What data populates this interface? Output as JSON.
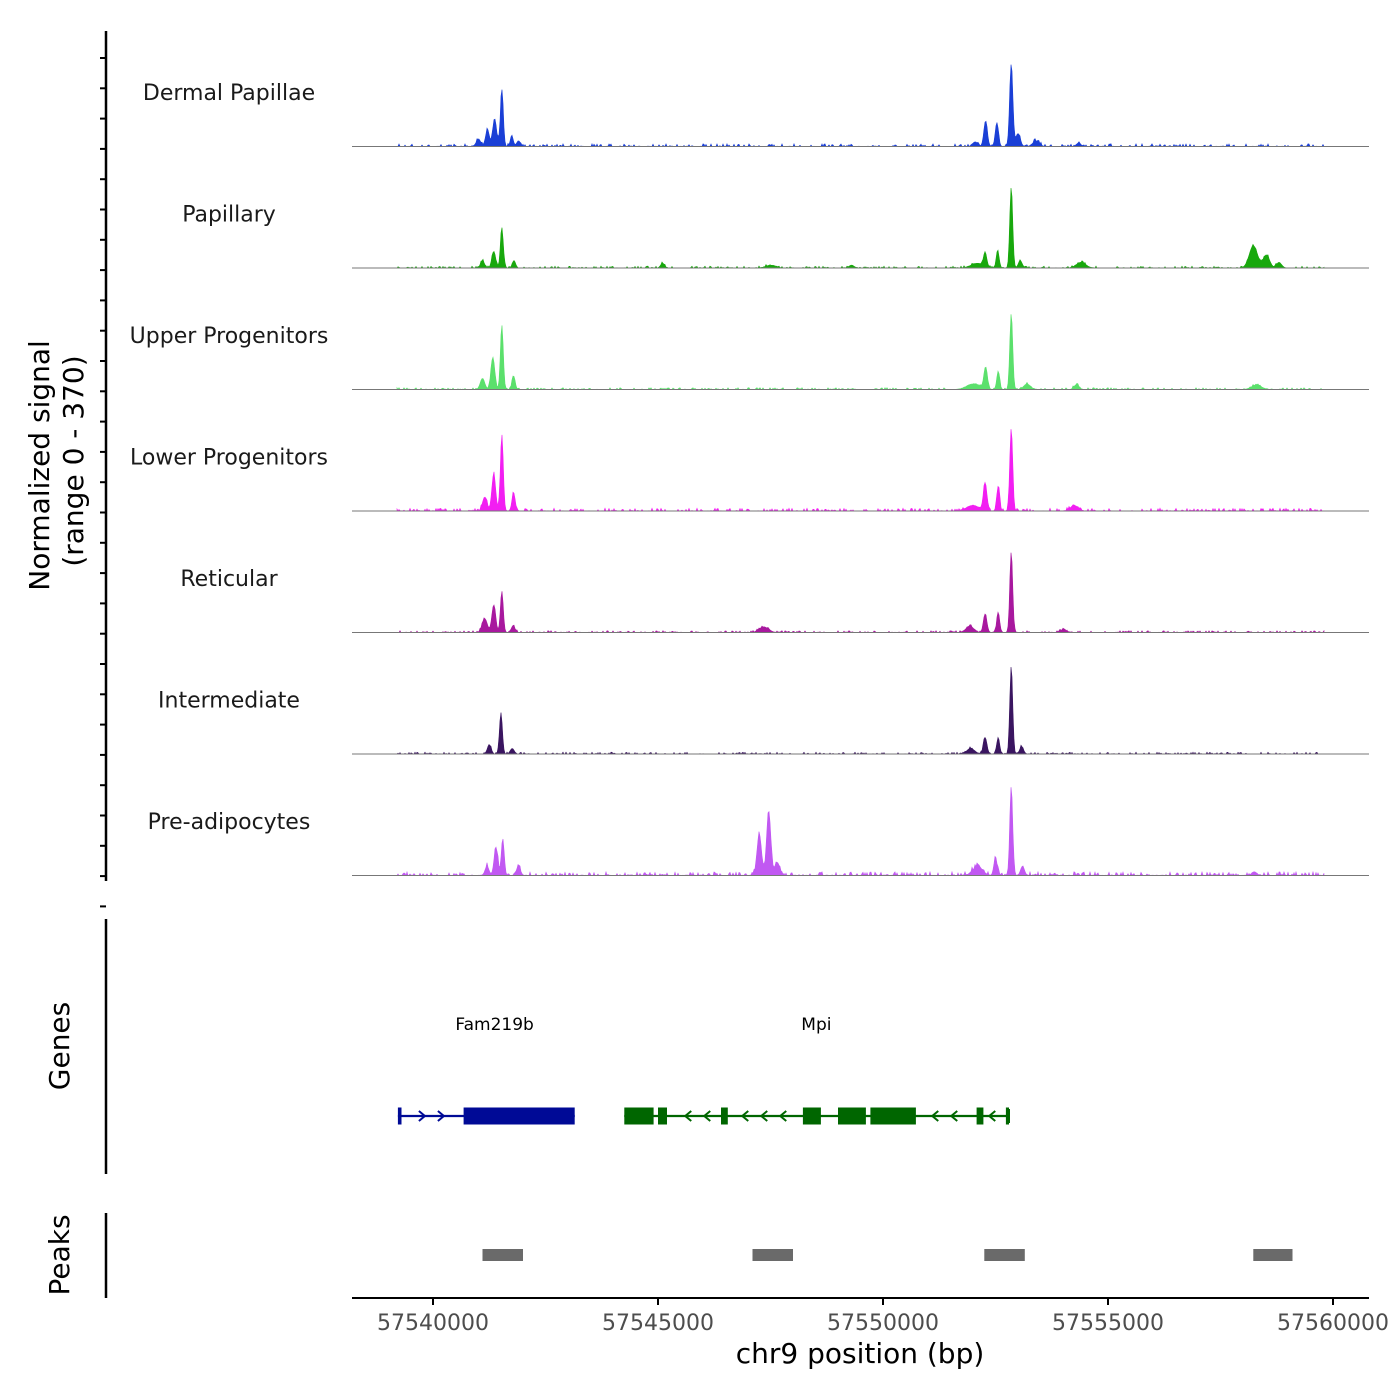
{
  "chart_data": {
    "type": "area",
    "title": "",
    "chromosome": "chr9",
    "xlabel": "chr9 position (bp)",
    "xlim": [
      57538200,
      57560800
    ],
    "xticks": [
      57540000,
      57545000,
      57550000,
      57555000,
      57560000
    ],
    "xtick_labels": [
      "57540000",
      "57545000",
      "57550000",
      "57555000",
      "57560000"
    ],
    "coverage": {
      "ylabel": "Normalized signal\n(range 0 - 370)",
      "ylabel_lines": [
        "Normalized signal",
        "(range 0 - 370)"
      ],
      "ylim": [
        0,
        370
      ],
      "data_start": 57539200,
      "data_end": 57559800,
      "series": [
        {
          "name": "Dermal Papillae",
          "color": "#1a3fd6",
          "background": 0.03,
          "peaks": [
            [
              57541010,
              0.08,
              70
            ],
            [
              57541210,
              0.18,
              60
            ],
            [
              57541370,
              0.3,
              60
            ],
            [
              57541530,
              0.62,
              45
            ],
            [
              57541750,
              0.12,
              45
            ],
            [
              57541900,
              0.06,
              60
            ],
            [
              57552050,
              0.05,
              80
            ],
            [
              57552280,
              0.28,
              55
            ],
            [
              57552530,
              0.26,
              50
            ],
            [
              57552850,
              0.9,
              50
            ],
            [
              57553000,
              0.14,
              70
            ],
            [
              57553400,
              0.06,
              100
            ],
            [
              57554350,
              0.04,
              60
            ]
          ]
        },
        {
          "name": "Papillary",
          "color": "#18a80d",
          "background": 0.02,
          "peaks": [
            [
              57541100,
              0.08,
              60
            ],
            [
              57541350,
              0.18,
              60
            ],
            [
              57541530,
              0.44,
              45
            ],
            [
              57541800,
              0.08,
              50
            ],
            [
              57545100,
              0.05,
              60
            ],
            [
              57547500,
              0.03,
              150
            ],
            [
              57549300,
              0.03,
              80
            ],
            [
              57552100,
              0.05,
              200
            ],
            [
              57552270,
              0.15,
              50
            ],
            [
              57552550,
              0.18,
              45
            ],
            [
              57552850,
              0.88,
              45
            ],
            [
              57553050,
              0.08,
              60
            ],
            [
              57554400,
              0.06,
              150
            ],
            [
              57558230,
              0.24,
              130
            ],
            [
              57558520,
              0.14,
              100
            ],
            [
              57558800,
              0.06,
              80
            ]
          ]
        },
        {
          "name": "Upper Progenitors",
          "color": "#5be06c",
          "background": 0.02,
          "peaks": [
            [
              57541100,
              0.12,
              70
            ],
            [
              57541330,
              0.35,
              60
            ],
            [
              57541530,
              0.7,
              45
            ],
            [
              57541790,
              0.14,
              50
            ],
            [
              57552000,
              0.06,
              200
            ],
            [
              57552280,
              0.24,
              55
            ],
            [
              57552560,
              0.2,
              45
            ],
            [
              57552850,
              0.83,
              45
            ],
            [
              57553200,
              0.06,
              100
            ],
            [
              57554300,
              0.05,
              80
            ],
            [
              57558300,
              0.05,
              150
            ]
          ]
        },
        {
          "name": "Lower Progenitors",
          "color": "#f21ef2",
          "background": 0.03,
          "peaks": [
            [
              57541150,
              0.15,
              70
            ],
            [
              57541350,
              0.4,
              60
            ],
            [
              57541530,
              0.83,
              45
            ],
            [
              57541790,
              0.2,
              50
            ],
            [
              57552000,
              0.06,
              200
            ],
            [
              57552270,
              0.3,
              55
            ],
            [
              57552560,
              0.27,
              45
            ],
            [
              57552850,
              0.9,
              45
            ],
            [
              57554250,
              0.06,
              120
            ]
          ]
        },
        {
          "name": "Reticular",
          "color": "#a8189e",
          "background": 0.02,
          "peaks": [
            [
              57541150,
              0.15,
              80
            ],
            [
              57541350,
              0.3,
              60
            ],
            [
              57541530,
              0.45,
              45
            ],
            [
              57541780,
              0.07,
              60
            ],
            [
              57547350,
              0.06,
              150
            ],
            [
              57551930,
              0.07,
              120
            ],
            [
              57552270,
              0.2,
              55
            ],
            [
              57552560,
              0.22,
              45
            ],
            [
              57552850,
              0.88,
              45
            ],
            [
              57554000,
              0.03,
              100
            ]
          ]
        },
        {
          "name": "Intermediate",
          "color": "#3a1560",
          "background": 0.02,
          "peaks": [
            [
              57541250,
              0.1,
              60
            ],
            [
              57541510,
              0.45,
              45
            ],
            [
              57541760,
              0.06,
              60
            ],
            [
              57551950,
              0.06,
              120
            ],
            [
              57552270,
              0.18,
              55
            ],
            [
              57552560,
              0.18,
              45
            ],
            [
              57552850,
              0.96,
              45
            ],
            [
              57553080,
              0.08,
              60
            ]
          ]
        },
        {
          "name": "Pre-adipocytes",
          "color": "#c158f2",
          "background": 0.04,
          "peaks": [
            [
              57541200,
              0.1,
              60
            ],
            [
              57541400,
              0.3,
              60
            ],
            [
              57541550,
              0.4,
              45
            ],
            [
              57541900,
              0.1,
              60
            ],
            [
              57547250,
              0.45,
              70
            ],
            [
              57547460,
              0.7,
              65
            ],
            [
              57547650,
              0.14,
              80
            ],
            [
              57552100,
              0.1,
              150
            ],
            [
              57552500,
              0.2,
              50
            ],
            [
              57552850,
              0.97,
              45
            ],
            [
              57553100,
              0.1,
              60
            ],
            [
              57558250,
              0.04,
              80
            ]
          ]
        }
      ]
    },
    "genes": {
      "label": "Genes",
      "items": [
        {
          "name": "Fam219b",
          "strand": "+",
          "start": 57539220,
          "end": 57543150,
          "color": "#000a96",
          "exons": [
            [
              57539220,
              57539300
            ],
            [
              57540680,
              57543150
            ]
          ],
          "label_x": 57541370
        },
        {
          "name": "Mpi",
          "strand": "-",
          "start": 57544250,
          "end": 57552800,
          "color": "#006600",
          "exons": [
            [
              57544250,
              57544900
            ],
            [
              57545000,
              57545200
            ],
            [
              57546400,
              57546550
            ],
            [
              57548220,
              57548620
            ],
            [
              57549000,
              57549620
            ],
            [
              57549720,
              57550730
            ],
            [
              57552080,
              57552230
            ],
            [
              57552730,
              57552800
            ]
          ],
          "label_x": 57548520
        }
      ]
    },
    "peaks": {
      "label": "Peaks",
      "color": "#6a6a6a",
      "regions": [
        [
          57541100,
          57542000
        ],
        [
          57547100,
          57548000
        ],
        [
          57552250,
          57553150
        ],
        [
          57558230,
          57559100
        ]
      ]
    }
  }
}
